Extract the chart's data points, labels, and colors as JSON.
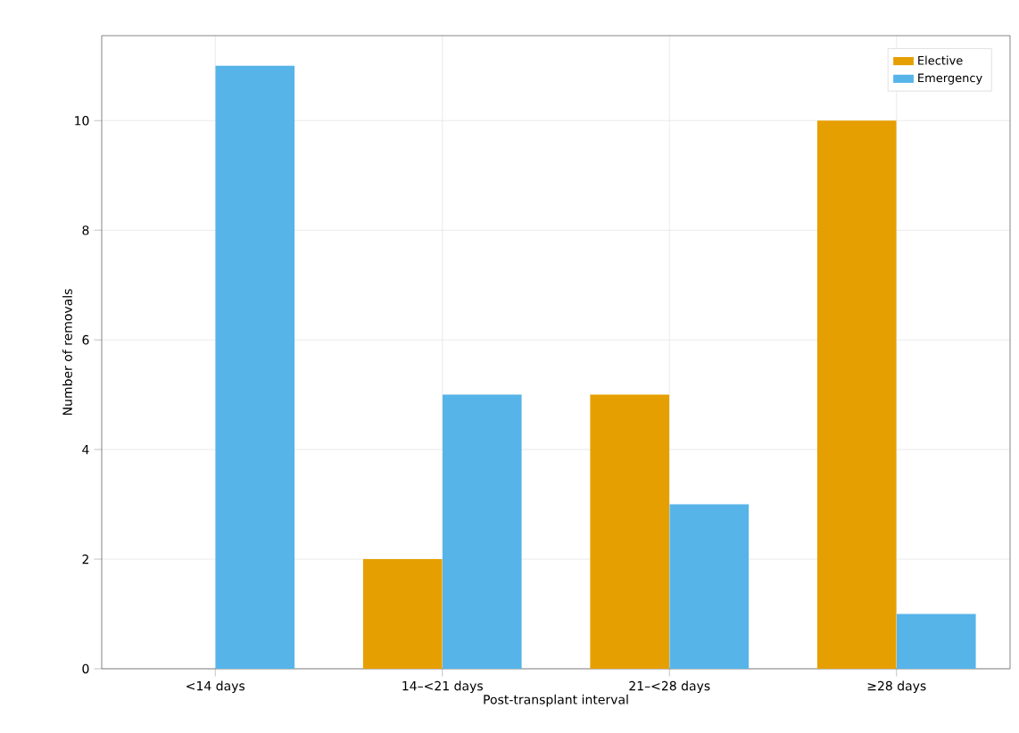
{
  "chart_data": {
    "type": "bar",
    "xlabel": "Post-transplant interval",
    "ylabel": "Number of removals",
    "categories": [
      "<14 days",
      "14–<21 days",
      "21–<28 days",
      "≥28 days"
    ],
    "series": [
      {
        "name": "Elective",
        "color": "#e69f00",
        "values": [
          0,
          2,
          5,
          10
        ]
      },
      {
        "name": "Emergency",
        "color": "#56b4e9",
        "values": [
          11,
          5,
          3,
          1
        ]
      }
    ],
    "ylim": [
      0,
      11.55
    ],
    "yticks": [
      0,
      2,
      4,
      6,
      8,
      10
    ],
    "grid": true,
    "legend": "top right"
  }
}
